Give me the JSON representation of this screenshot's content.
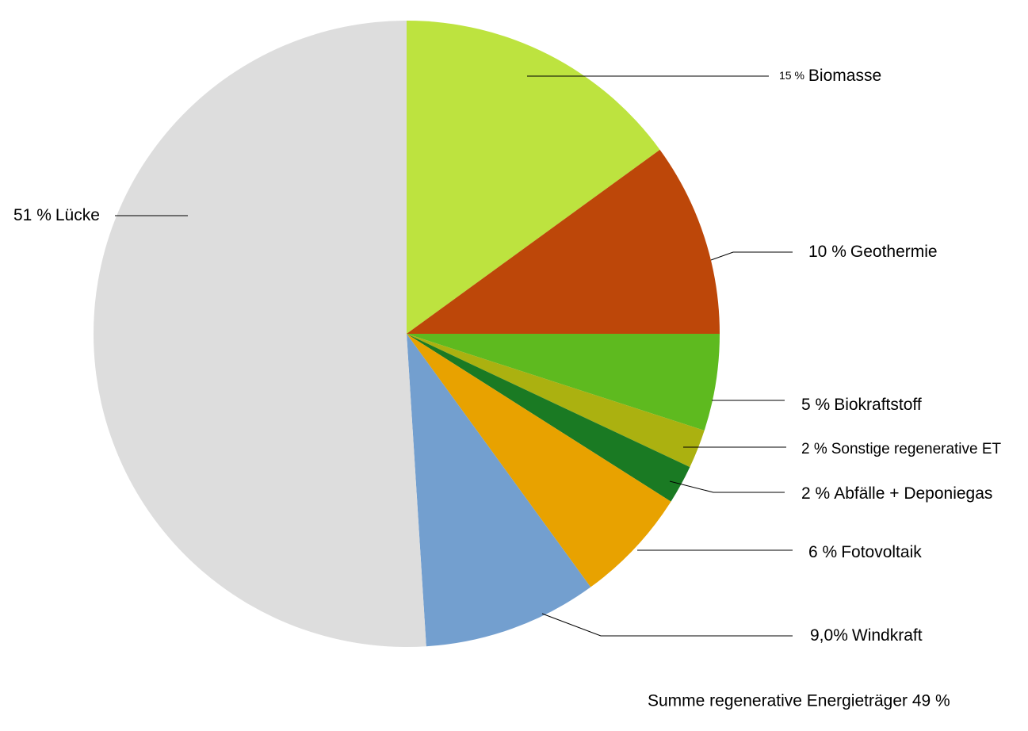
{
  "chart_data": {
    "type": "pie",
    "categories": [
      "Biomasse",
      "Geothermie",
      "Biokraftstoff",
      "Sonstige regenerative ET",
      "Abfälle + Deponiegas",
      "Fotovoltaik",
      "Windkraft",
      "Lücke"
    ],
    "values": [
      15,
      10,
      5,
      2,
      2,
      6,
      9,
      51
    ],
    "value_labels": [
      "15 %",
      "10 %",
      "5 %",
      "2 %",
      "2 %",
      "6 %",
      "9,0%",
      "51 %"
    ],
    "colors": [
      "#bde33f",
      "#bd4709",
      "#5eba1f",
      "#abb110",
      "#1a7a23",
      "#e8a200",
      "#739fcf",
      "#dddddd"
    ],
    "annotation": "Summe regenerative Energieträger 49 %"
  }
}
